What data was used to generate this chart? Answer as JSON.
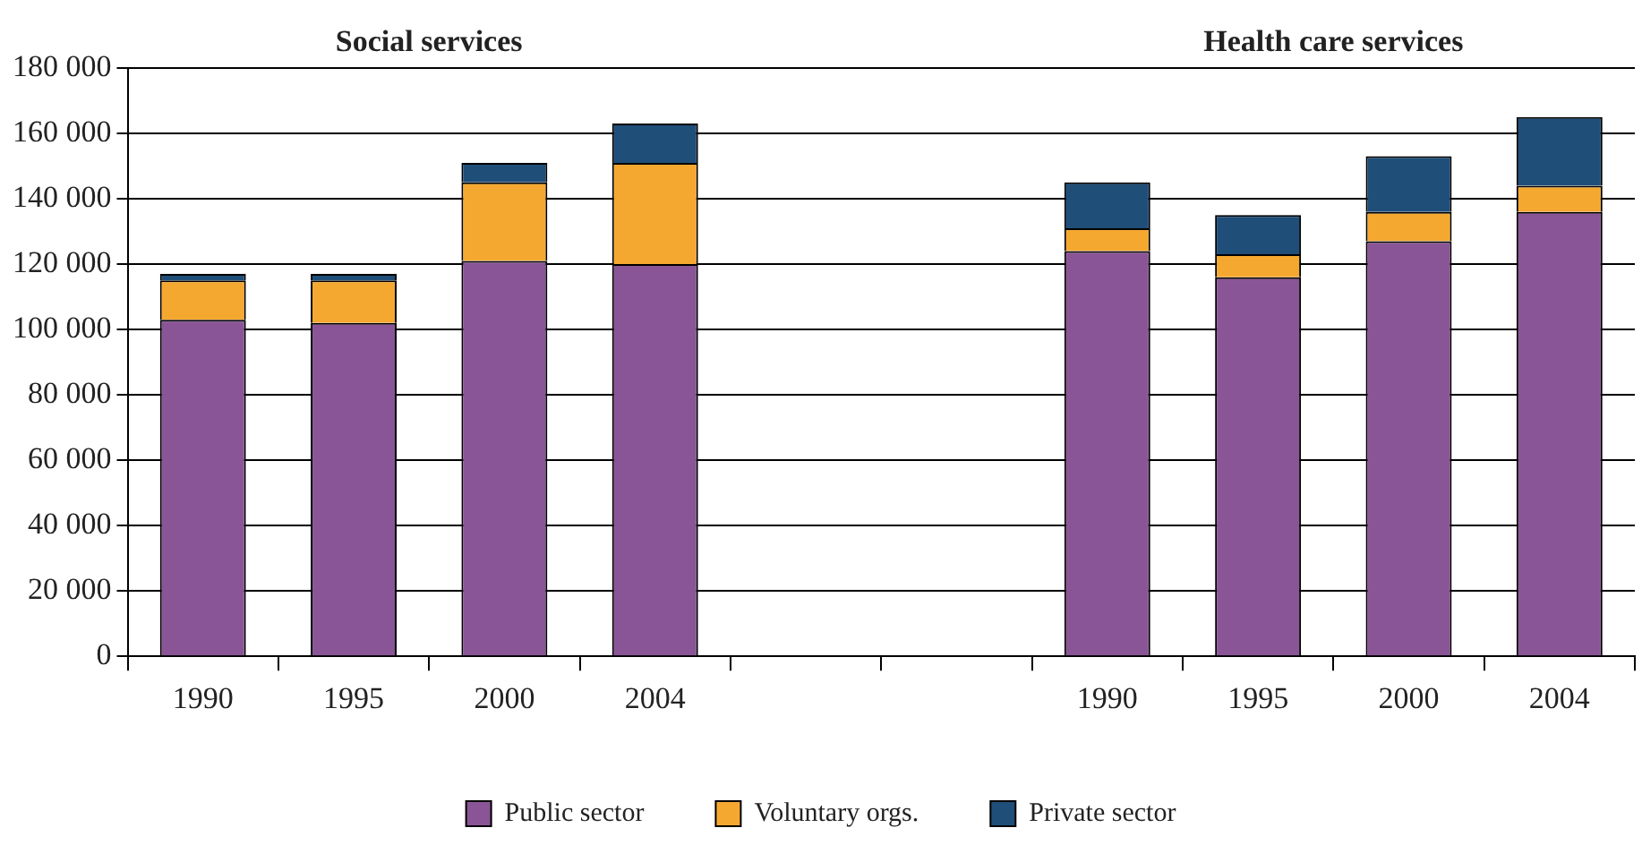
{
  "chart_data": {
    "type": "bar",
    "stacked": true,
    "categories": [
      "1990",
      "1995",
      "2000",
      "2004",
      null,
      null,
      "1990",
      "1995",
      "2000",
      "2004"
    ],
    "series": [
      {
        "name": "Public sector",
        "color": "#8a5596",
        "values": [
          103000,
          102000,
          121000,
          120000,
          null,
          null,
          124000,
          116000,
          127000,
          136000
        ]
      },
      {
        "name": "Voluntary orgs.",
        "color": "#f5a830",
        "values": [
          12000,
          13000,
          24000,
          31000,
          null,
          null,
          7000,
          7000,
          9000,
          8000
        ]
      },
      {
        "name": "Private sector",
        "color": "#1f4e79",
        "values": [
          2000,
          2000,
          6000,
          12000,
          null,
          null,
          14000,
          12000,
          17000,
          21000
        ]
      }
    ],
    "ylim": [
      0,
      180000
    ],
    "yticks": [
      0,
      {
        "value": 20000,
        "label": "20 000"
      },
      {
        "value": 40000,
        "label": "40 000"
      },
      {
        "value": 60000,
        "label": "60 000"
      },
      {
        "value": 80000,
        "label": "80 000"
      },
      {
        "value": 100000,
        "label": "100 000"
      },
      {
        "value": 120000,
        "label": "120 000"
      },
      {
        "value": 140000,
        "label": "140 000"
      },
      {
        "value": 160000,
        "label": "160 000"
      },
      {
        "value": 180000,
        "label": "180 000"
      }
    ],
    "grid": "y",
    "legend": "bottom",
    "annotations": [
      "Social services",
      "Health care services"
    ]
  }
}
